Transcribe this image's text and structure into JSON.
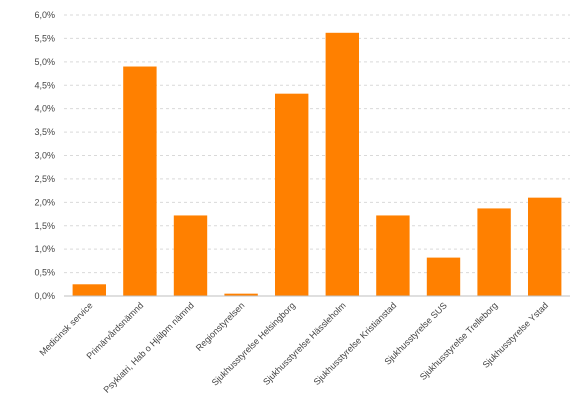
{
  "chart_data": {
    "type": "bar",
    "categories": [
      "Medicinsk service",
      "Primärvårdsnämnd",
      "Psykiatri, Hab o Hjälpm nämnd",
      "Regionstyrelsen",
      "Sjukhusstyrelse Helsingborg",
      "Sjukhusstyrelse Hässleholm",
      "Sjukhusstyrelse Kristianstad",
      "Sjukhusstyrelse SUS",
      "Sjukhusstyrelse Trelleborg",
      "Sjukhusstyrelse Ystad"
    ],
    "values": [
      0.25,
      4.9,
      1.72,
      0.05,
      4.32,
      5.62,
      1.72,
      0.82,
      1.87,
      2.1
    ],
    "title": "",
    "xlabel": "",
    "ylabel": "",
    "ylim": [
      0,
      6
    ],
    "yticks": [
      "0,0%",
      "0,5%",
      "1,0%",
      "1,5%",
      "2,0%",
      "2,5%",
      "3,0%",
      "3,5%",
      "4,0%",
      "4,5%",
      "5,0%",
      "5,5%",
      "6,0%"
    ],
    "bar_color": "#ff8000",
    "grid": true,
    "legend": "none"
  }
}
